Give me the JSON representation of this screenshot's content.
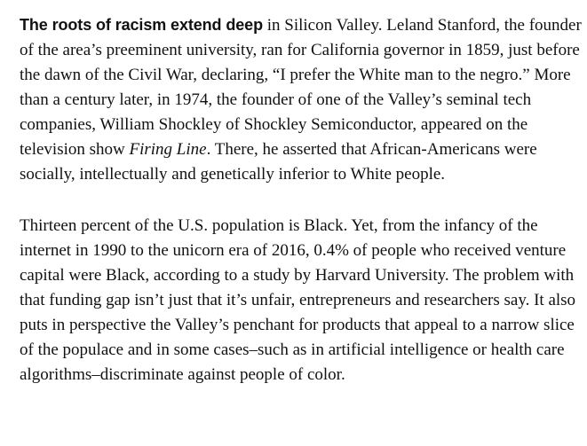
{
  "article": {
    "paragraph_1": {
      "lead": "The roots of racism extend deep",
      "text_1": " in Silicon Valley. Leland Stanford, the founder of the area’s preeminent university, ran for California governor in 1859, just before the dawn of the Civil War, declaring, “I prefer the White man to the negro.” More than a century later, in 1974, the founder of one of the Valley’s seminal tech companies, William Shockley of Shockley Semiconductor, appeared on the television show ",
      "show_title": "Firing Line",
      "text_2": ". There, he asserted that African-Americans were socially, intellectually and genetically inferior to White people."
    },
    "paragraph_2": {
      "text": "Thirteen percent of the U.S. population is Black. Yet, from the infancy of the internet in 1990 to the unicorn era of 2016, 0.4% of people who received venture capital were Black, according to a study by Harvard University. The problem with that funding gap isn’t just that it’s unfair, entrepreneurs and researchers say. It also puts in perspective the Valley’s penchant for products that appeal to a narrow slice of the populace and in some cases–such as in artificial intelligence or health care algorithms–discriminate against people of color."
    }
  }
}
